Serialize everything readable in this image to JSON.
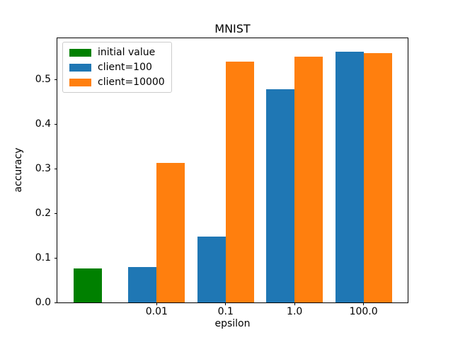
{
  "chart_data": {
    "type": "bar",
    "title": "MNIST",
    "xlabel": "epsilon",
    "ylabel": "accuracy",
    "categories": [
      "0.01",
      "0.1",
      "1.0",
      "100.0"
    ],
    "series": [
      {
        "name": "initial value",
        "color": "#008000",
        "positions": [
          0
        ],
        "offset": 0,
        "values": [
          0.076
        ]
      },
      {
        "name": "client=100",
        "color": "#1f77b4",
        "positions": [
          1,
          2,
          3,
          4
        ],
        "offset": -0.205,
        "values": [
          0.08,
          0.148,
          0.479,
          0.563
        ]
      },
      {
        "name": "client=10000",
        "color": "#ff7f0e",
        "positions": [
          1,
          2,
          3,
          4
        ],
        "offset": 0.205,
        "values": [
          0.313,
          0.54,
          0.551,
          0.559
        ]
      }
    ],
    "x_ticks": [
      {
        "pos": 1,
        "label": "0.01"
      },
      {
        "pos": 2,
        "label": "0.1"
      },
      {
        "pos": 3,
        "label": "1.0"
      },
      {
        "pos": 4,
        "label": "100.0"
      }
    ],
    "y_ticks": [
      {
        "value": 0.0,
        "label": "0.0"
      },
      {
        "value": 0.1,
        "label": "0.1"
      },
      {
        "value": 0.2,
        "label": "0.2"
      },
      {
        "value": 0.3,
        "label": "0.3"
      },
      {
        "value": 0.4,
        "label": "0.4"
      },
      {
        "value": 0.5,
        "label": "0.5"
      }
    ],
    "xlim": [
      -0.44,
      4.64
    ],
    "ylim": [
      0,
      0.593
    ],
    "bar_width": 0.41,
    "grid": false,
    "legend": {
      "position": "upper left",
      "entries": [
        "initial value",
        "client=100",
        "client=10000"
      ]
    }
  }
}
